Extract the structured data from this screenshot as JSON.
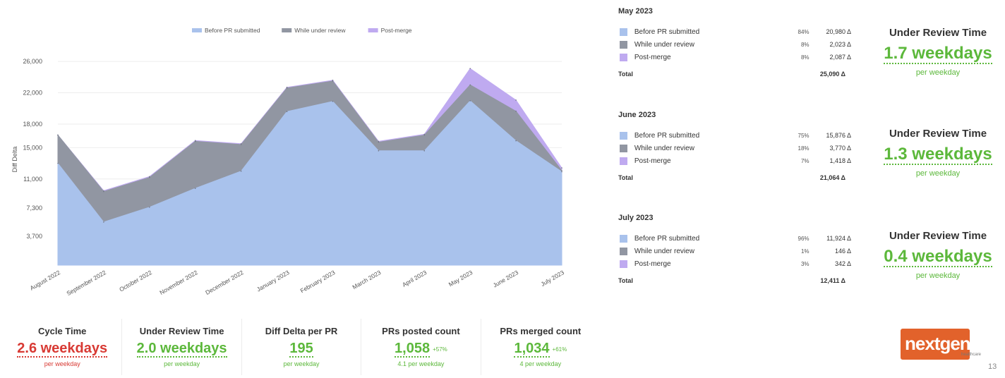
{
  "chart_data": {
    "type": "area",
    "stacked": true,
    "categories": [
      "August 2022",
      "September 2022",
      "October 2022",
      "November 2022",
      "December 2022",
      "January 2023",
      "February 2023",
      "March 2023",
      "April 2023",
      "May 2023",
      "June 2023",
      "July 2023"
    ],
    "series": [
      {
        "name": "Before PR submitted",
        "color": "#a9c2ec",
        "values": [
          13000,
          5500,
          7400,
          9800,
          12000,
          19600,
          20900,
          14600,
          14600,
          20980,
          15876,
          11924
        ]
      },
      {
        "name": "While under review",
        "color": "#9196a2",
        "values": [
          3600,
          3900,
          3800,
          6000,
          3400,
          3000,
          2600,
          1100,
          2000,
          2023,
          3770,
          146
        ]
      },
      {
        "name": "Post-merge",
        "color": "#bfaaf0",
        "values": [
          0,
          100,
          100,
          100,
          100,
          100,
          100,
          100,
          100,
          2087,
          1418,
          342
        ]
      }
    ],
    "ylabel": "Diff Delta",
    "xlabel": "",
    "y_ticks": [
      "3,700",
      "7,300",
      "11,000",
      "15,000",
      "18,000",
      "22,000",
      "26,000"
    ],
    "y_tick_values": [
      3700,
      7300,
      11000,
      15000,
      18000,
      22000,
      26000
    ],
    "ylim": [
      0,
      27000
    ],
    "grid": true,
    "legend_position": "top"
  },
  "kpis": [
    {
      "title": "Cycle Time",
      "value": "2.6 weekdays",
      "sub": "per weekday",
      "color": "red",
      "delta": ""
    },
    {
      "title": "Under Review Time",
      "value": "2.0 weekdays",
      "sub": "per weekday",
      "color": "green",
      "delta": ""
    },
    {
      "title": "Diff Delta per PR",
      "value": "195",
      "sub": "per weekday",
      "color": "green",
      "delta": ""
    },
    {
      "title": "PRs posted count",
      "value": "1,058",
      "sub": "4.1 per weekday",
      "color": "green",
      "delta": "+57%"
    },
    {
      "title": "PRs merged count",
      "value": "1,034",
      "sub": "4 per weekday",
      "color": "green",
      "delta": "+61%"
    }
  ],
  "months": [
    {
      "title": "May 2023",
      "rows": [
        {
          "label": "Before PR submitted",
          "pct": "84%",
          "value": "20,980 Δ"
        },
        {
          "label": "While under review",
          "pct": "8%",
          "value": "2,023 Δ"
        },
        {
          "label": "Post-merge",
          "pct": "8%",
          "value": "2,087 Δ"
        }
      ],
      "total_label": "Total",
      "total_value": "25,090 Δ",
      "urt_title": "Under Review Time",
      "urt_value": "1.7 weekdays",
      "urt_sub": "per weekday"
    },
    {
      "title": "June 2023",
      "rows": [
        {
          "label": "Before PR submitted",
          "pct": "75%",
          "value": "15,876 Δ"
        },
        {
          "label": "While under review",
          "pct": "18%",
          "value": "3,770 Δ"
        },
        {
          "label": "Post-merge",
          "pct": "7%",
          "value": "1,418 Δ"
        }
      ],
      "total_label": "Total",
      "total_value": "21,064 Δ",
      "urt_title": "Under Review Time",
      "urt_value": "1.3 weekdays",
      "urt_sub": "per weekday"
    },
    {
      "title": "July 2023",
      "rows": [
        {
          "label": "Before PR submitted",
          "pct": "96%",
          "value": "11,924 Δ"
        },
        {
          "label": "While under review",
          "pct": "1%",
          "value": "146 Δ"
        },
        {
          "label": "Post-merge",
          "pct": "3%",
          "value": "342 Δ"
        }
      ],
      "total_label": "Total",
      "total_value": "12,411 Δ",
      "urt_title": "Under Review Time",
      "urt_value": "0.4 weekdays",
      "urt_sub": "per weekday"
    }
  ],
  "logo": {
    "text": "nextgen",
    "sub": "healthcare",
    "color": "#e2622b"
  },
  "page_number": "13"
}
